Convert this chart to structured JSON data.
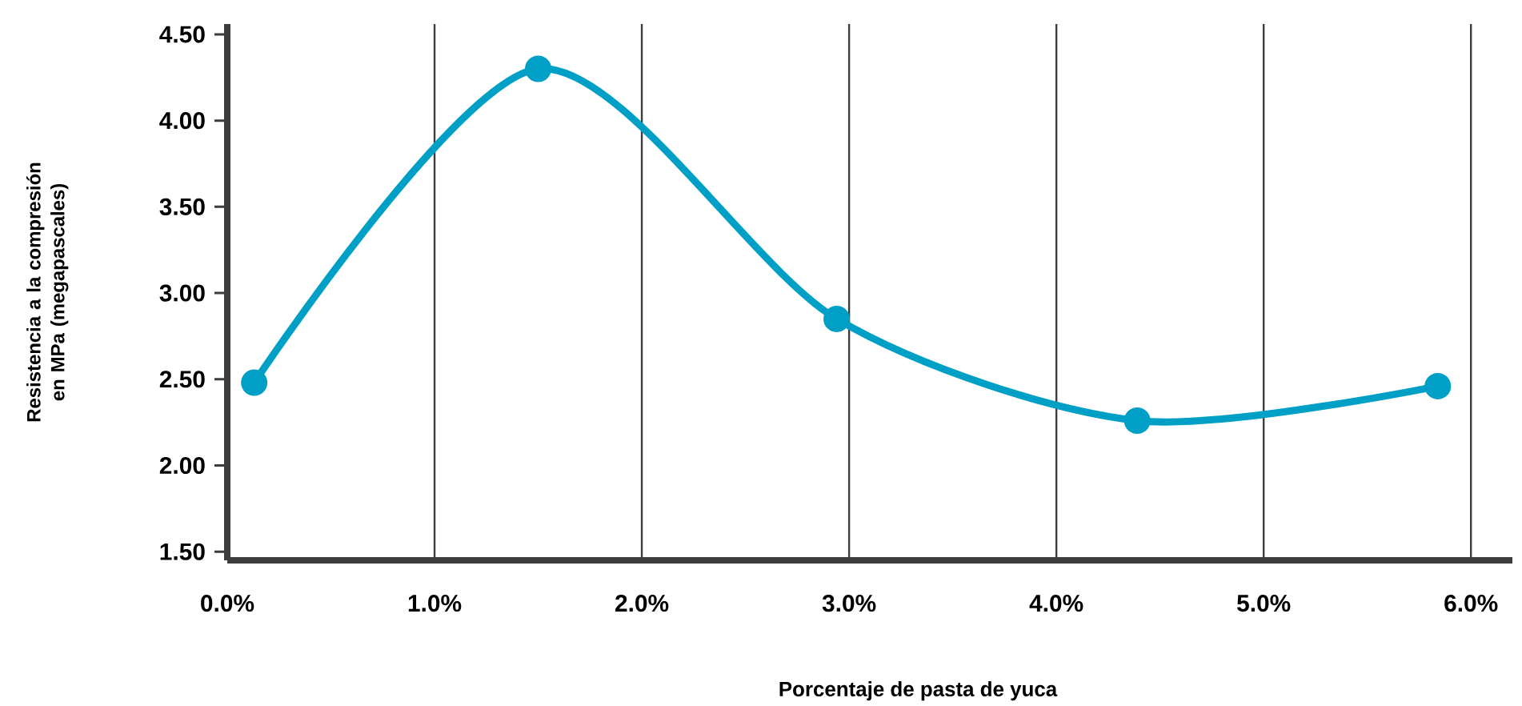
{
  "chart_data": {
    "type": "line",
    "xlabel": "Porcentaje de pasta de yuca",
    "ylabel": "Resistencia a la compresión en MPa (megapascales)",
    "x": [
      0.13,
      1.5,
      2.94,
      4.39,
      5.84
    ],
    "series": [
      {
        "color": "#00a0c6",
        "values": [
          2.48,
          4.3,
          2.85,
          2.26,
          2.46
        ]
      }
    ],
    "xlim": [
      0,
      6.2
    ],
    "ylim": [
      1.45,
      4.56
    ],
    "xticks": [
      {
        "value": 0,
        "label": "0.0%"
      },
      {
        "value": 1,
        "label": "1.0%"
      },
      {
        "value": 2,
        "label": "2.0%"
      },
      {
        "value": 3,
        "label": "3.0%"
      },
      {
        "value": 4,
        "label": "4.0%"
      },
      {
        "value": 5,
        "label": "5.0%"
      },
      {
        "value": 6,
        "label": "6.0%"
      }
    ],
    "yticks": [
      {
        "value": 1.5,
        "label": "1.50"
      },
      {
        "value": 2,
        "label": "2.00"
      },
      {
        "value": 2.5,
        "label": "2.50"
      },
      {
        "value": 3,
        "label": "3.00"
      },
      {
        "value": 3.5,
        "label": "3.50"
      },
      {
        "value": 4,
        "label": "4.00"
      },
      {
        "value": 4.5,
        "label": "4.50"
      }
    ],
    "grid": "x",
    "marker": "circle",
    "line_style": "solid"
  }
}
